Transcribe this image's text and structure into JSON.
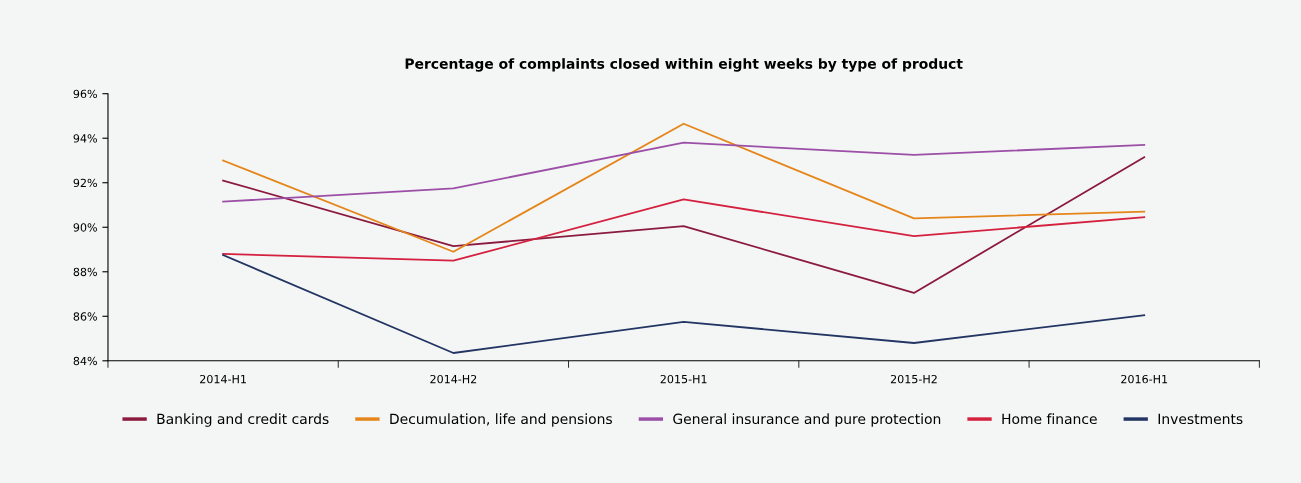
{
  "chart_data": {
    "type": "line",
    "title": "Percentage of complaints closed within eight weeks by type of product",
    "categories": [
      "2014-H1",
      "2014-H2",
      "2015-H1",
      "2015-H2",
      "2016-H1"
    ],
    "series": [
      {
        "name": "Banking and credit cards",
        "color": "#8b1a3f",
        "values": [
          92.1,
          89.15,
          90.05,
          87.05,
          93.15
        ]
      },
      {
        "name": "Decumulation, life and pensions",
        "color": "#e5861a",
        "values": [
          93.0,
          88.9,
          94.65,
          90.4,
          90.7
        ]
      },
      {
        "name": "General insurance and pure protection",
        "color": "#9b4fa6",
        "values": [
          91.15,
          91.75,
          93.8,
          93.25,
          93.7
        ]
      },
      {
        "name": "Home finance",
        "color": "#d4213f",
        "values": [
          88.8,
          88.5,
          91.25,
          89.6,
          90.45
        ]
      },
      {
        "name": "Investments",
        "color": "#233563",
        "values": [
          88.75,
          84.35,
          85.75,
          84.8,
          86.05
        ]
      }
    ],
    "ylim": [
      84,
      96
    ],
    "yticks": [
      {
        "value": 84,
        "label": "84%"
      },
      {
        "value": 86,
        "label": "86%"
      },
      {
        "value": 88,
        "label": "88%"
      },
      {
        "value": 90,
        "label": "90%"
      },
      {
        "value": 92,
        "label": "92%"
      },
      {
        "value": 94,
        "label": "94%"
      },
      {
        "value": 96,
        "label": "96%"
      }
    ],
    "grid": false,
    "legend": "bottom",
    "marker": "none",
    "line_style": "solid"
  }
}
